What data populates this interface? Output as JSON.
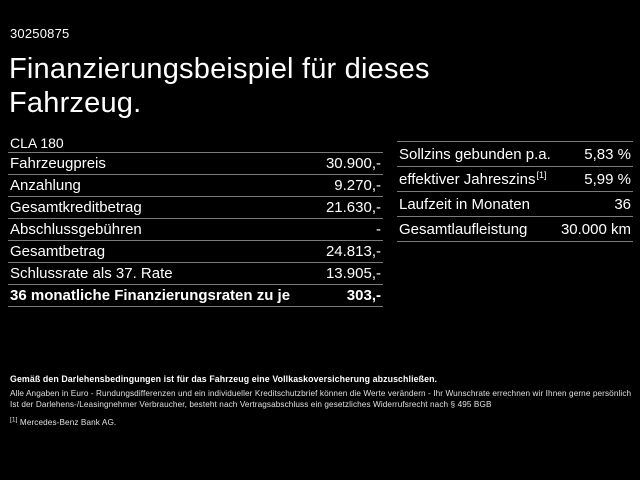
{
  "colors": {
    "background": "#000000",
    "text": "#ffffff",
    "divider": "#7a7a7a"
  },
  "page": {
    "offer_id": "30250875",
    "title_line1": "Finanzierungsbeispiel für dieses",
    "title_line2": "Fahrzeug.",
    "model": "CLA 180"
  },
  "finance_table": {
    "rows": [
      {
        "label": "Fahrzeugpreis",
        "value": "30.900,-"
      },
      {
        "label": "Anzahlung",
        "value": "9.270,-"
      },
      {
        "label": "Gesamtkreditbetrag",
        "value": "21.630,-"
      },
      {
        "label": "Abschlussgebühren",
        "value": "-"
      },
      {
        "label": "Gesamtbetrag",
        "value": "24.813,-"
      },
      {
        "label": "Schlussrate als 37. Rate",
        "value": "13.905,-"
      }
    ],
    "highlight_row": {
      "label": "36 monatliche Finanzierungsraten zu je",
      "value": "303,-"
    }
  },
  "conditions_table": {
    "rows": [
      {
        "label": "Sollzins gebunden p.a.",
        "value": "5,83 %"
      },
      {
        "label": "effektiver Jahreszins",
        "sup": "[1]",
        "value": "5,99 %"
      },
      {
        "label": "Laufzeit in Monaten",
        "value": "36"
      },
      {
        "label": "Gesamtlaufleistung",
        "value": "30.000 km"
      }
    ]
  },
  "footer": {
    "bold_note": "Gemäß den Darlehensbedingungen ist für das Fahrzeug eine Vollkaskoversicherung abzuschließen.",
    "disclaimer_line1": "Alle Angaben in Euro - Rundungsdifferenzen und ein individueller Kreditschutzbrief können die Werte verändern - Ihr Wunschrate errechnen wir Ihnen gerne persönlich",
    "disclaimer_line2": "Ist der Darlehens-/Leasingnehmer Verbraucher, besteht nach Vertragsabschluss ein gesetzliches Widerrufsrecht nach § 495 BGB",
    "footnote_marker": "[1]",
    "footnote_text": "Mercedes-Benz Bank AG."
  }
}
